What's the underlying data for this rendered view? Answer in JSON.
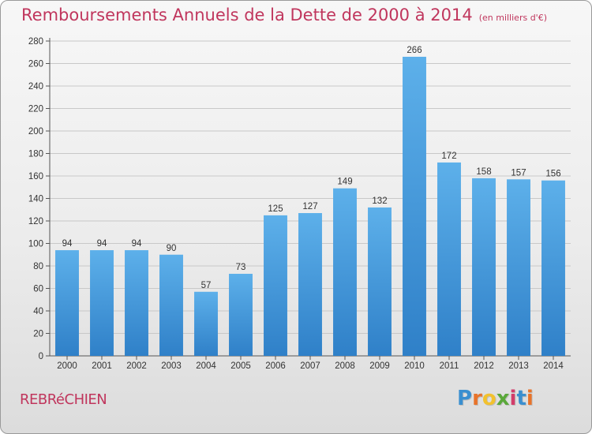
{
  "title": "Remboursements Annuels de la Dette de 2000 à 2014",
  "title_unit": "(en milliers d'€)",
  "commune": "REBRéCHIEN",
  "logo": {
    "letters": [
      "P",
      "r",
      "o",
      "x",
      "i",
      "t",
      "i"
    ],
    "colors": [
      "#3a8fd0",
      "#e8732a",
      "#f2c12e",
      "#5aa83a",
      "#d23c6a",
      "#3a8fd0",
      "#e8732a"
    ]
  },
  "colors": {
    "title": "#c0365d",
    "bar_top": "#5db0ea",
    "bar_bottom": "#2f80c8",
    "grid": "#c8c8c8"
  },
  "chart_data": {
    "type": "bar",
    "categories": [
      "2000",
      "2001",
      "2002",
      "2003",
      "2004",
      "2005",
      "2006",
      "2007",
      "2008",
      "2009",
      "2010",
      "2011",
      "2012",
      "2013",
      "2014"
    ],
    "values": [
      94,
      94,
      94,
      90,
      57,
      73,
      125,
      127,
      149,
      132,
      266,
      172,
      158,
      157,
      156
    ],
    "ylim": [
      0,
      280
    ],
    "yticks": [
      0,
      20,
      40,
      60,
      80,
      100,
      120,
      140,
      160,
      180,
      200,
      220,
      240,
      260,
      280
    ],
    "grid": true,
    "legend": "none"
  }
}
